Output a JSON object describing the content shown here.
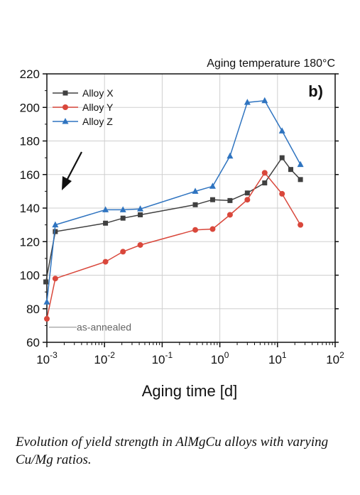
{
  "chart_data": {
    "type": "line",
    "subtitle": "Aging temperature 180°C",
    "panel_label": "b)",
    "xlabel": "Aging time [d]",
    "ylabel": "",
    "x_scale": "log",
    "xlim": [
      0.001,
      100
    ],
    "ylim": [
      60,
      220
    ],
    "x_ticks": [
      {
        "value": 0.001,
        "base": "10",
        "exp": "-3"
      },
      {
        "value": 0.01,
        "base": "10",
        "exp": "-2"
      },
      {
        "value": 0.1,
        "base": "10",
        "exp": "-1"
      },
      {
        "value": 1,
        "base": "10",
        "exp": "0"
      },
      {
        "value": 10,
        "base": "10",
        "exp": "1"
      },
      {
        "value": 100,
        "base": "10",
        "exp": "2"
      }
    ],
    "y_ticks": [
      60,
      80,
      100,
      120,
      140,
      160,
      180,
      200,
      220
    ],
    "grid": true,
    "legend_position": "top-left",
    "series": [
      {
        "name": "Alloy X",
        "color": "#404040",
        "marker": "square",
        "x": [
          0.00096,
          0.0014,
          0.0104,
          0.0209,
          0.0417,
          0.375,
          0.75,
          1.5,
          3.0,
          6.0,
          12.0,
          17.0,
          25.0
        ],
        "y": [
          96,
          126,
          131,
          134,
          136,
          142,
          145,
          144.5,
          149,
          155,
          170,
          163,
          157
        ]
      },
      {
        "name": "Alloy Y",
        "color": "#d9473b",
        "marker": "circle",
        "x": [
          0.001,
          0.0014,
          0.0104,
          0.0209,
          0.0417,
          0.375,
          0.75,
          1.5,
          3.0,
          6.0,
          12.0,
          25.0
        ],
        "y": [
          74,
          98,
          108,
          114,
          118,
          127,
          127.5,
          136,
          145,
          161,
          148.5,
          130
        ]
      },
      {
        "name": "Alloy Z",
        "color": "#2f74c0",
        "marker": "triangle",
        "x": [
          0.001,
          0.0014,
          0.0104,
          0.0209,
          0.0417,
          0.375,
          0.75,
          1.5,
          3.0,
          6.0,
          12.0,
          25.0
        ],
        "y": [
          84,
          130,
          139,
          139,
          139.5,
          150,
          153,
          171,
          203,
          204,
          186,
          166
        ]
      }
    ],
    "annotations": [
      {
        "text": "as-annealed",
        "x": 0.001,
        "y": 69
      }
    ]
  },
  "caption": "Evolution of yield strength in AlMgCu alloys with varying Cu/Mg ratios."
}
